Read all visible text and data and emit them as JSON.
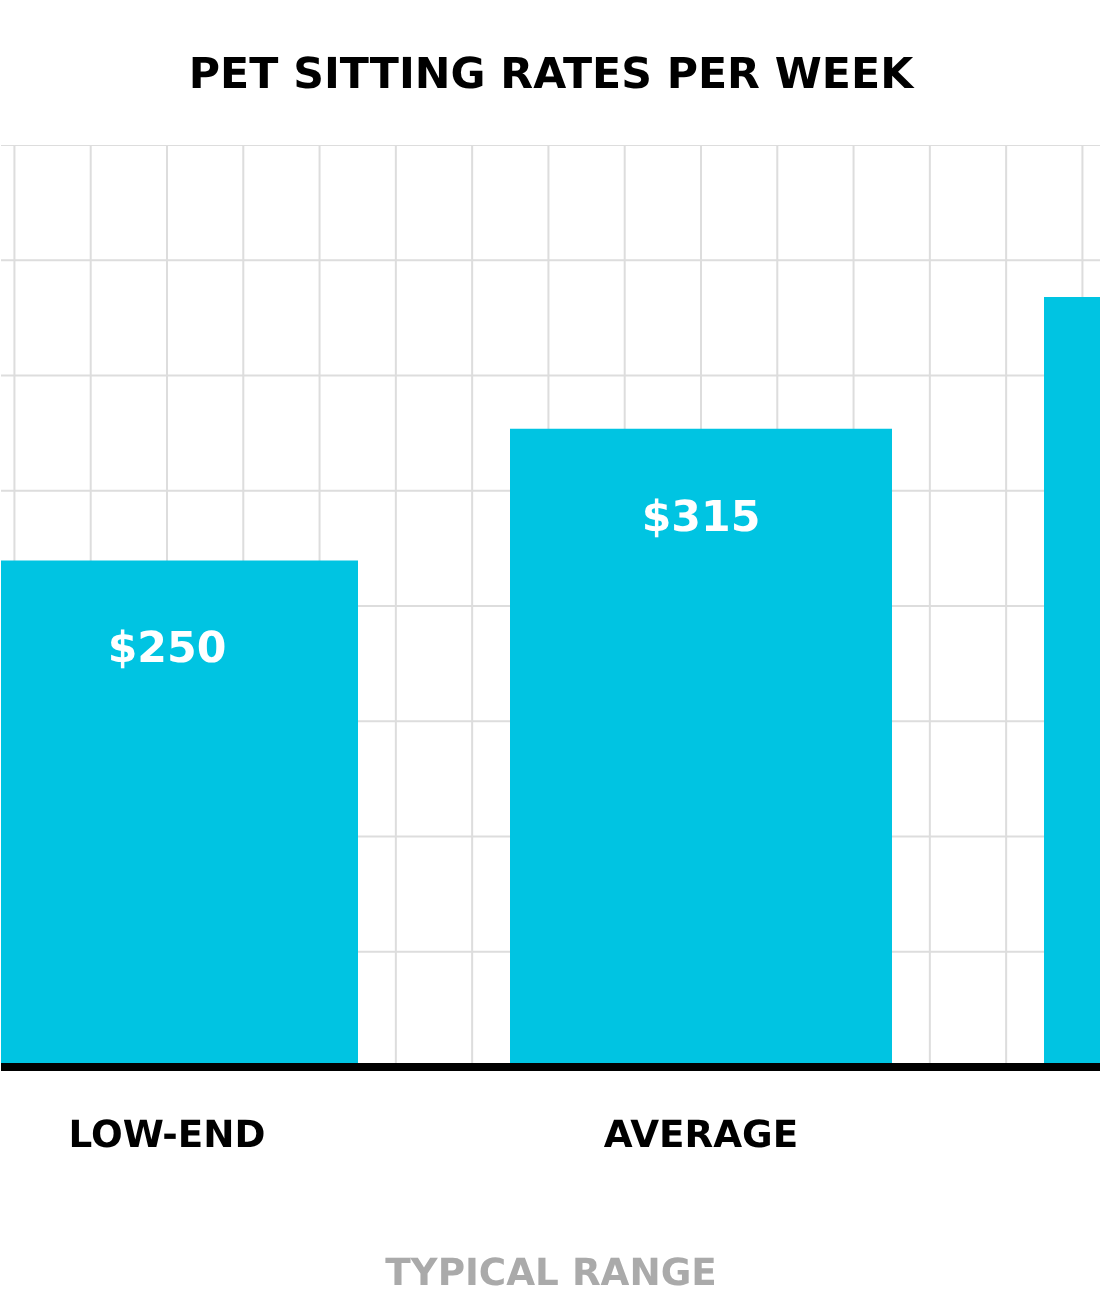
{
  "chart_data": {
    "type": "bar",
    "title": "PET SITTING RATES PER WEEK",
    "xlabel": "TYPICAL RANGE",
    "categories": [
      "LOW-END",
      "AVERAGE",
      null
    ],
    "values": [
      250,
      315,
      380
    ],
    "value_labels": [
      "$250",
      "$315",
      null
    ],
    "color": "#00c4e2",
    "ylim": [
      0,
      455
    ],
    "tick_labels": "x",
    "grid": true
  }
}
